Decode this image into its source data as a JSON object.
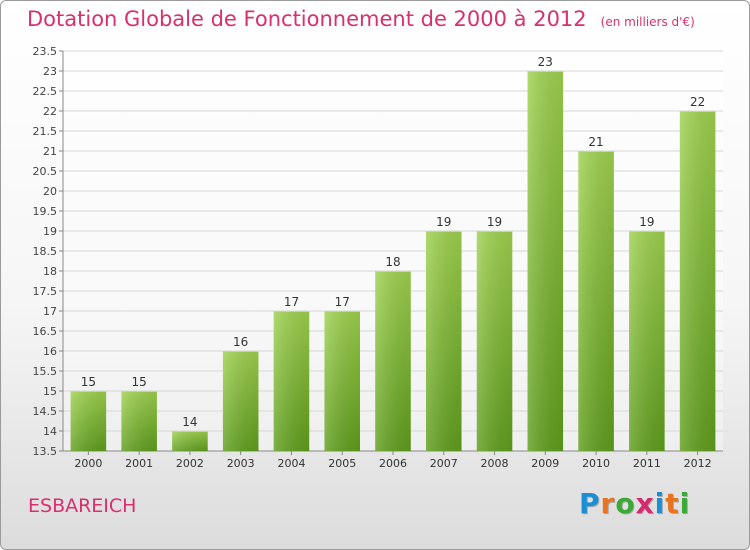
{
  "title": "Dotation Globale de Fonctionnement de 2000 à 2012",
  "subtitle": "(en milliers d'€)",
  "commune": "ESBAREICH",
  "logo": {
    "text": "Proxiti",
    "colors": [
      "#1a8fd6",
      "#e9741f",
      "#3aa935",
      "#d62a6f",
      "#1a8fd6",
      "#e9741f",
      "#3aa935"
    ]
  },
  "chart_data": {
    "type": "bar",
    "categories": [
      "2000",
      "2001",
      "2002",
      "2003",
      "2004",
      "2005",
      "2006",
      "2007",
      "2008",
      "2009",
      "2010",
      "2011",
      "2012"
    ],
    "values": [
      15,
      15,
      14,
      16,
      17,
      17,
      18,
      19,
      19,
      23,
      21,
      19,
      22
    ],
    "data_labels": [
      "15",
      "15",
      "14",
      "16",
      "17",
      "17",
      "18",
      "19",
      "19",
      "23",
      "21",
      "19",
      "22"
    ],
    "title": "Dotation Globale de Fonctionnement de 2000 à 2012",
    "subtitle": "(en milliers d'€)",
    "xlabel": "",
    "ylabel": "",
    "ylim": [
      13.5,
      23.5
    ],
    "yticks": [
      "13.5",
      "14",
      "14.5",
      "15",
      "15.5",
      "16",
      "16.5",
      "17",
      "17.5",
      "18",
      "18.5",
      "19",
      "19.5",
      "20",
      "20.5",
      "21",
      "21.5",
      "22",
      "22.5",
      "23",
      "23.5"
    ],
    "grid": true,
    "bar_color": "#8cc63f"
  }
}
